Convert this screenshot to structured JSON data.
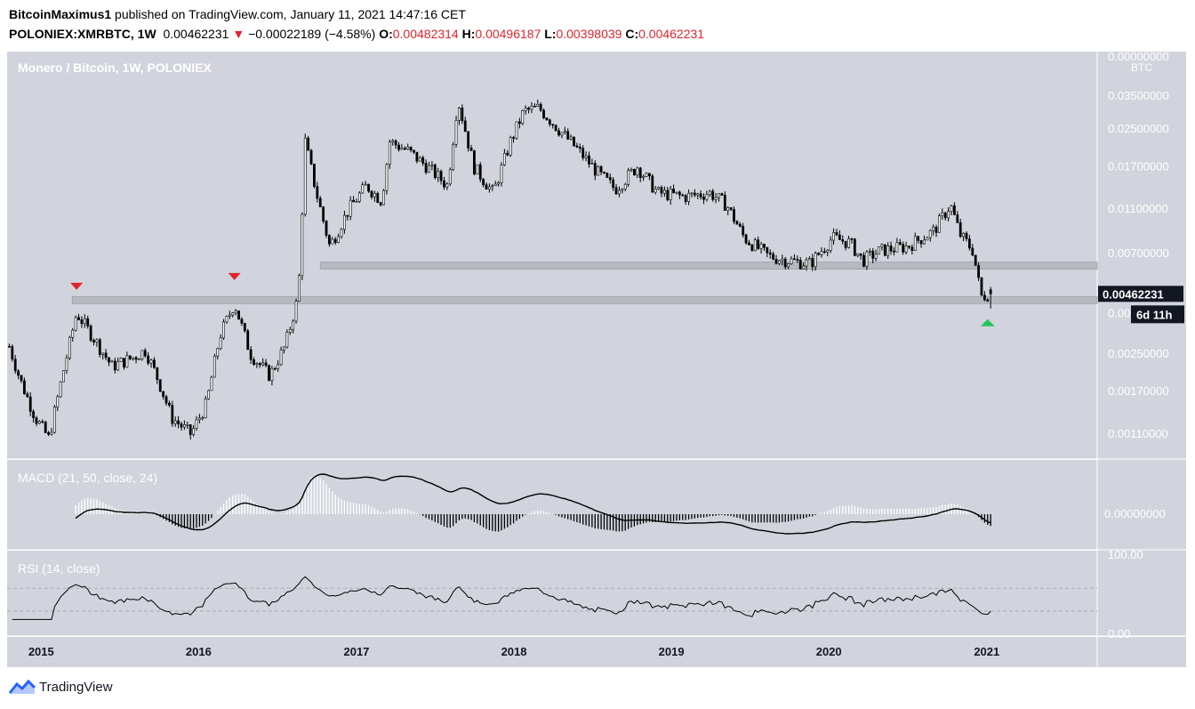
{
  "header": {
    "author": "BitcoinMaximus1",
    "published_text": "published on TradingView.com, January 11, 2021 14:47:16 CET",
    "symbol": "POLONIEX:XMRBTC, 1W",
    "last": "0.00462231",
    "change_arrow": "▼",
    "change": "−0.00022189 (−4.58%)",
    "o_label": "O:",
    "o": "0.00482314",
    "h_label": "H:",
    "h": "0.00496187",
    "l_label": "L:",
    "l": "0.00398039",
    "c_label": "C:",
    "c": "0.00462231"
  },
  "footer": {
    "brand": "TradingView",
    "logo_icon": "tradingview-logo-icon"
  },
  "colors": {
    "pane_bg": "#d1d4dc",
    "up": "#ffffff",
    "down": "#000000",
    "accent_red": "#e0242b",
    "accent_green": "#22c55e",
    "zone": "#b5b7bd"
  },
  "chart_data": [
    {
      "type": "candlestick",
      "title": "Monero / Bitcoin, 1W, POLONIEX",
      "y_unit": "BTC",
      "y_scale": "log",
      "y_ticks": [
        "0.00000000",
        "0.03500000",
        "0.02500000",
        "0.01700000",
        "0.01100000",
        "0.00700000",
        "0.00250000",
        "0.00170000",
        "0.00110000"
      ],
      "x_ticks": [
        "2015",
        "2016",
        "2017",
        "2018",
        "2019",
        "2020",
        "2021"
      ],
      "last_price_label": "0.00462231",
      "countdown_label": "6d 11h",
      "partial_tick_label": "0.00",
      "price_path": [
        [
          "2014-10-20",
          0.0027
        ],
        [
          "2014-11-15",
          0.0019
        ],
        [
          "2014-12-20",
          0.0013
        ],
        [
          "2015-01-20",
          0.00105
        ],
        [
          "2015-02-20",
          0.002
        ],
        [
          "2015-03-25",
          0.0038
        ],
        [
          "2015-05-01",
          0.003
        ],
        [
          "2015-06-15",
          0.0022
        ],
        [
          "2015-08-01",
          0.0024
        ],
        [
          "2015-09-01",
          0.0026
        ],
        [
          "2015-10-01",
          0.0019
        ],
        [
          "2015-11-01",
          0.0013
        ],
        [
          "2015-12-15",
          0.0011
        ],
        [
          "2016-01-20",
          0.0015
        ],
        [
          "2016-02-20",
          0.003
        ],
        [
          "2016-03-25",
          0.0042
        ],
        [
          "2016-05-01",
          0.0025
        ],
        [
          "2016-06-15",
          0.002
        ],
        [
          "2016-07-20",
          0.0027
        ],
        [
          "2016-08-20",
          0.0045
        ],
        [
          "2016-09-05",
          0.022
        ],
        [
          "2016-10-01",
          0.013
        ],
        [
          "2016-11-01",
          0.0075
        ],
        [
          "2016-12-15",
          0.011
        ],
        [
          "2017-01-25",
          0.014
        ],
        [
          "2017-03-01",
          0.012
        ],
        [
          "2017-03-20",
          0.022
        ],
        [
          "2017-05-01",
          0.02
        ],
        [
          "2017-06-15",
          0.017
        ],
        [
          "2017-08-01",
          0.014
        ],
        [
          "2017-08-25",
          0.034
        ],
        [
          "2017-10-01",
          0.017
        ],
        [
          "2017-11-15",
          0.013
        ],
        [
          "2017-12-25",
          0.022
        ],
        [
          "2018-01-25",
          0.03
        ],
        [
          "2018-03-01",
          0.031
        ],
        [
          "2018-04-15",
          0.025
        ],
        [
          "2018-06-01",
          0.02
        ],
        [
          "2018-07-15",
          0.016
        ],
        [
          "2018-08-25",
          0.0135
        ],
        [
          "2018-10-15",
          0.017
        ],
        [
          "2018-12-01",
          0.013
        ],
        [
          "2019-02-01",
          0.0125
        ],
        [
          "2019-04-01",
          0.013
        ],
        [
          "2019-05-10",
          0.0115
        ],
        [
          "2019-06-20",
          0.0082
        ],
        [
          "2019-08-15",
          0.0068
        ],
        [
          "2019-10-01",
          0.0065
        ],
        [
          "2019-11-20",
          0.0063
        ],
        [
          "2020-01-10",
          0.0082
        ],
        [
          "2020-02-20",
          0.0078
        ],
        [
          "2020-03-20",
          0.0065
        ],
        [
          "2020-05-01",
          0.0072
        ],
        [
          "2020-07-01",
          0.0075
        ],
        [
          "2020-09-01",
          0.0088
        ],
        [
          "2020-10-10",
          0.0115
        ],
        [
          "2020-11-01",
          0.0085
        ],
        [
          "2020-12-01",
          0.0072
        ],
        [
          "2020-12-20",
          0.0045
        ],
        [
          "2021-01-04",
          0.0046
        ],
        [
          "2021-01-11",
          0.0046
        ]
      ],
      "annotations": [
        {
          "kind": "resistance_marker",
          "date": "2015-03-25",
          "color": "red"
        },
        {
          "kind": "resistance_marker",
          "date": "2016-03-25",
          "color": "red"
        },
        {
          "kind": "support_marker",
          "date": "2021-01-04",
          "color": "green"
        },
        {
          "kind": "horizontal_zone",
          "from": "2015-03-15",
          "low": 0.0042,
          "high": 0.0045
        },
        {
          "kind": "horizontal_zone",
          "from": "2016-10-10",
          "low": 0.006,
          "high": 0.0064
        }
      ]
    },
    {
      "type": "line",
      "title": "MACD (21, 50, close, 24)",
      "y_ticks": [
        "0.00000000"
      ],
      "series_shape": "macd_line_and_histogram"
    },
    {
      "type": "line",
      "title": "RSI (14, close)",
      "y_ticks": [
        "100.00",
        "0.00"
      ]
    }
  ]
}
